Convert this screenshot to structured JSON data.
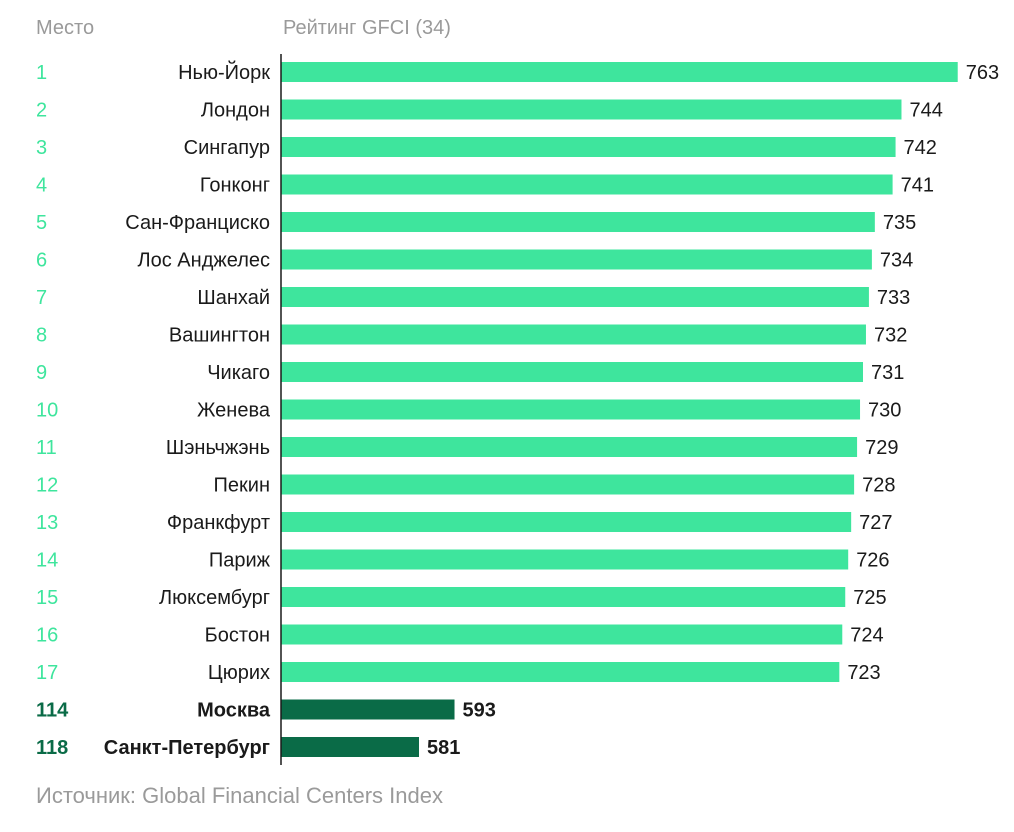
{
  "header": {
    "rank_label": "Место",
    "rating_label": "Рейтинг GFCI (34)"
  },
  "source": "Источник: Global Financial Centers Index",
  "colors": {
    "top_bar": "#3ee59d",
    "highlight_bar": "#0a6b47",
    "top_rank": "#3ee59d",
    "highlight_rank": "#0a6b47",
    "axis": "#1a1a1a",
    "muted_text": "#9a9a9a"
  },
  "chart_data": {
    "type": "bar",
    "orientation": "horizontal",
    "xlabel": "Рейтинг GFCI (34)",
    "series": [
      {
        "rank": "1",
        "city": "Нью-Йорк",
        "value": 763,
        "highlight": false
      },
      {
        "rank": "2",
        "city": "Лондон",
        "value": 744,
        "highlight": false
      },
      {
        "rank": "3",
        "city": "Сингапур",
        "value": 742,
        "highlight": false
      },
      {
        "rank": "4",
        "city": "Гонконг",
        "value": 741,
        "highlight": false
      },
      {
        "rank": "5",
        "city": "Сан-Франциско",
        "value": 735,
        "highlight": false
      },
      {
        "rank": "6",
        "city": "Лос Анджелес",
        "value": 734,
        "highlight": false
      },
      {
        "rank": "7",
        "city": "Шанхай",
        "value": 733,
        "highlight": false
      },
      {
        "rank": "8",
        "city": "Вашингтон",
        "value": 732,
        "highlight": false
      },
      {
        "rank": "9",
        "city": "Чикаго",
        "value": 731,
        "highlight": false
      },
      {
        "rank": "10",
        "city": "Женева",
        "value": 730,
        "highlight": false
      },
      {
        "rank": "11",
        "city": "Шэньчжэнь",
        "value": 729,
        "highlight": false
      },
      {
        "rank": "12",
        "city": "Пекин",
        "value": 728,
        "highlight": false
      },
      {
        "rank": "13",
        "city": "Франкфурт",
        "value": 727,
        "highlight": false
      },
      {
        "rank": "14",
        "city": "Париж",
        "value": 726,
        "highlight": false
      },
      {
        "rank": "15",
        "city": "Люксембург",
        "value": 725,
        "highlight": false
      },
      {
        "rank": "16",
        "city": "Бостон",
        "value": 724,
        "highlight": false
      },
      {
        "rank": "17",
        "city": "Цюрих",
        "value": 723,
        "highlight": false
      },
      {
        "rank": "114",
        "city": "Москва",
        "value": 593,
        "highlight": true
      },
      {
        "rank": "118",
        "city": "Санкт-Петербург",
        "value": 581,
        "highlight": true
      }
    ]
  }
}
